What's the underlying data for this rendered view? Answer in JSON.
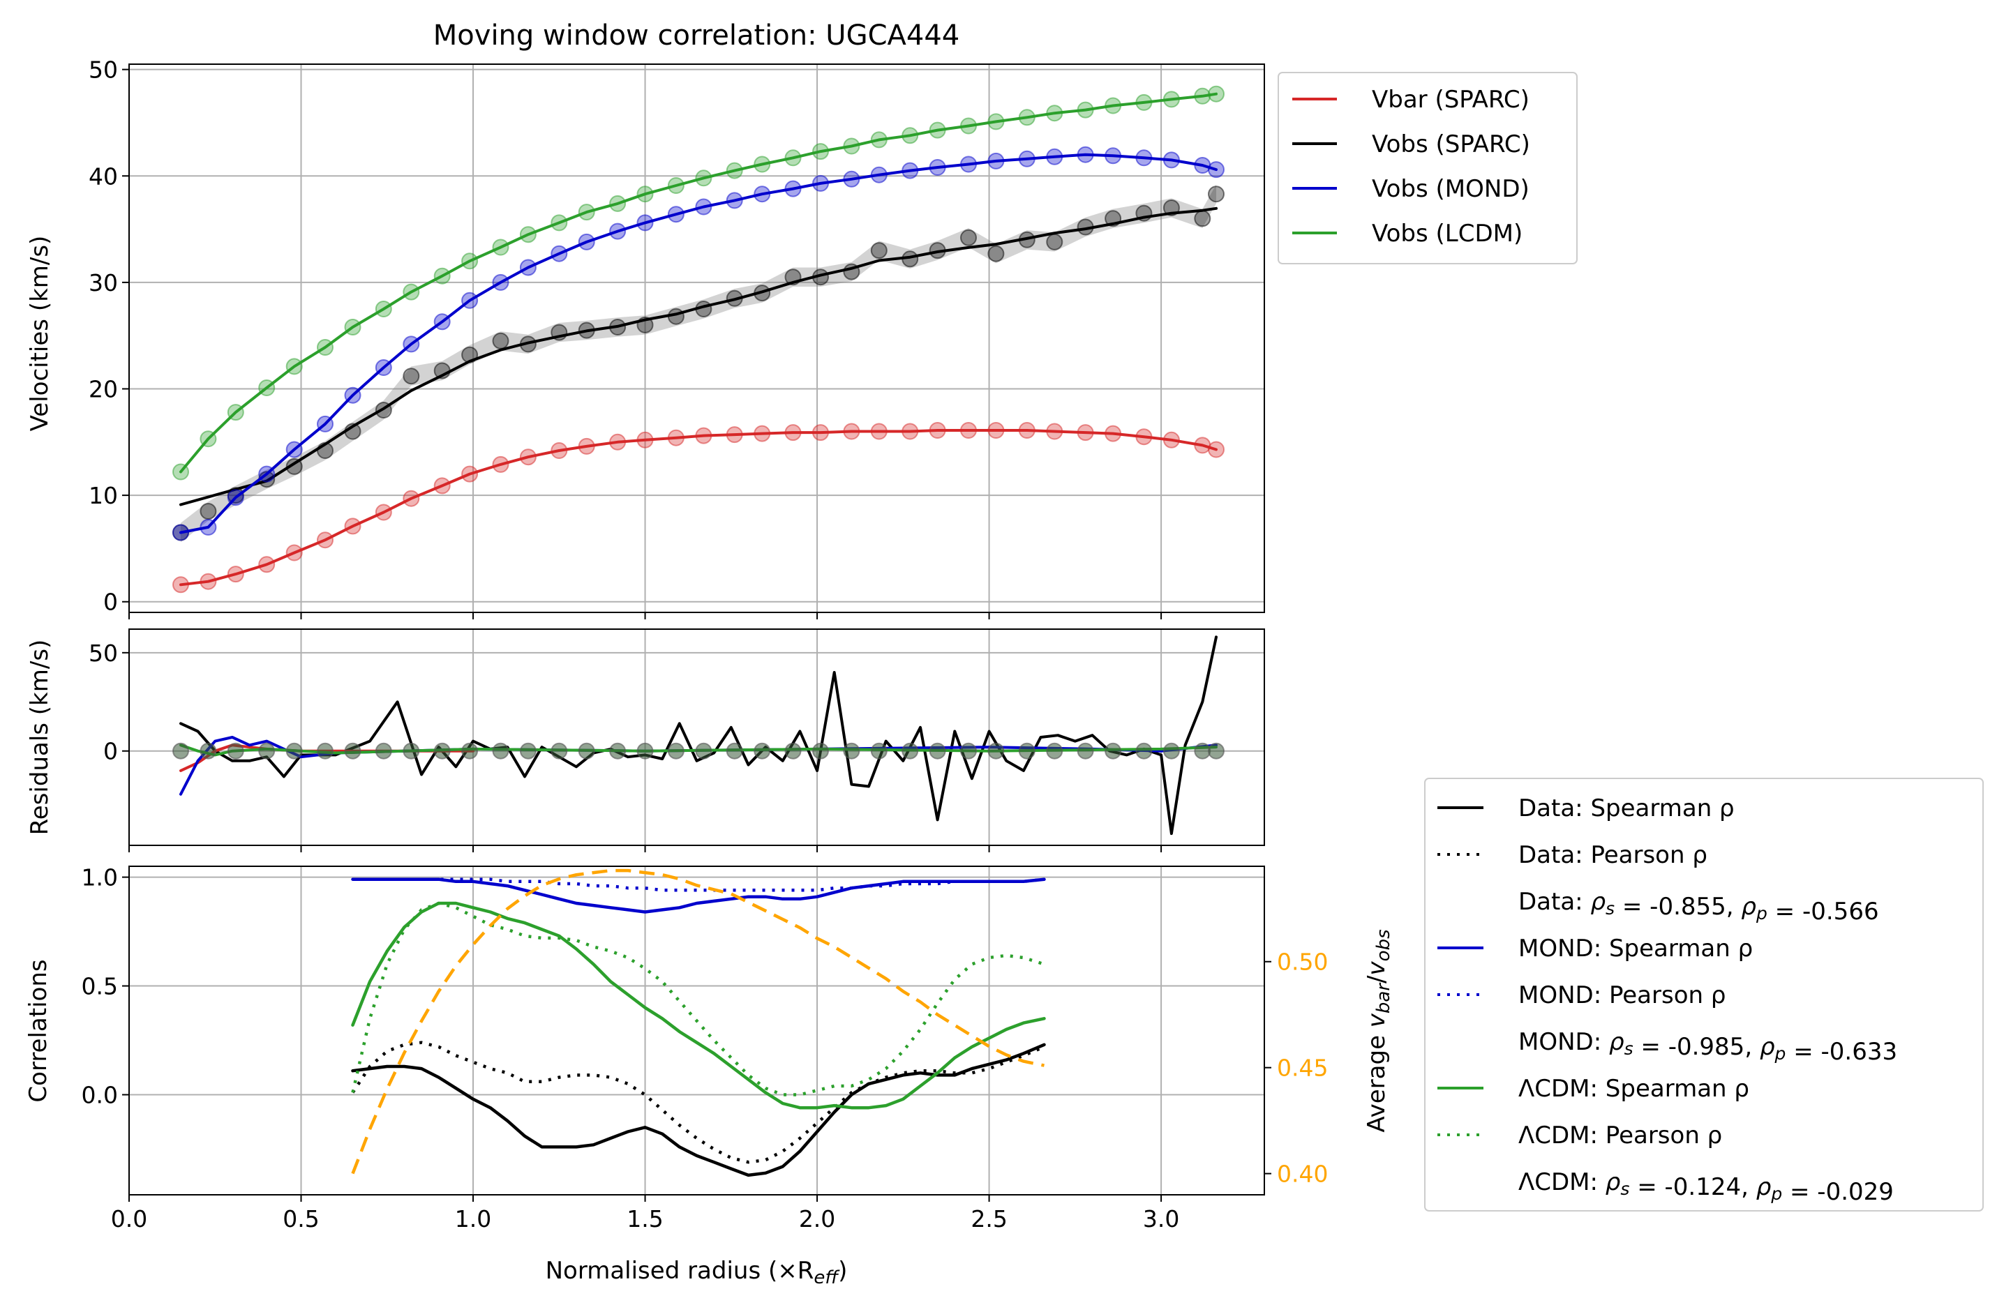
{
  "chart_data": [
    {
      "type": "line",
      "panel": "velocities",
      "title": "Moving window correlation: UGCA444",
      "ylabel": "Velocities (km/s)",
      "xlim": [
        0.0,
        3.3
      ],
      "ylim": [
        -1,
        50.5
      ],
      "yticks": [
        "0",
        "10",
        "20",
        "30",
        "40",
        "50"
      ],
      "grid": true,
      "legend_position": "outside-top-right",
      "legend": [
        {
          "label": "Vbar (SPARC)",
          "color": "#d62728"
        },
        {
          "label": "Vobs (SPARC)",
          "color": "#000000"
        },
        {
          "label": "Vobs (MOND)",
          "color": "#0000cc"
        },
        {
          "label": "Vobs (LCDM)",
          "color": "#2ca02c"
        }
      ],
      "x": [
        0.15,
        0.23,
        0.31,
        0.4,
        0.48,
        0.57,
        0.65,
        0.74,
        0.82,
        0.91,
        0.99,
        1.08,
        1.16,
        1.25,
        1.33,
        1.42,
        1.5,
        1.59,
        1.67,
        1.76,
        1.84,
        1.93,
        2.01,
        2.1,
        2.18,
        2.27,
        2.35,
        2.44,
        2.52,
        2.61,
        2.69,
        2.78,
        2.86,
        2.95,
        3.03,
        3.12,
        3.16
      ],
      "series": [
        {
          "name": "Vbar (SPARC)",
          "color": "#d62728",
          "values": [
            1.6,
            1.9,
            2.6,
            3.5,
            4.6,
            5.8,
            7.1,
            8.4,
            9.7,
            10.9,
            12.0,
            12.9,
            13.6,
            14.2,
            14.6,
            15.0,
            15.2,
            15.4,
            15.6,
            15.7,
            15.8,
            15.9,
            15.9,
            16.0,
            16.0,
            16.0,
            16.1,
            16.1,
            16.1,
            16.1,
            16.0,
            15.9,
            15.8,
            15.5,
            15.2,
            14.7,
            14.3
          ]
        },
        {
          "name": "Vobs (SPARC)",
          "color": "#000000",
          "values": [
            6.5,
            8.5,
            10.0,
            11.5,
            12.7,
            14.2,
            16.0,
            18.0,
            21.2,
            21.7,
            23.2,
            24.5,
            24.2,
            25.3,
            25.5,
            25.8,
            26.0,
            26.8,
            27.5,
            28.5,
            29.0,
            30.5,
            30.5,
            31.0,
            33.0,
            32.2,
            33.0,
            34.2,
            32.7,
            34.0,
            33.8,
            35.2,
            36.0,
            36.5,
            37.0,
            36.0,
            38.3
          ]
        },
        {
          "name": "Vobs (MOND)",
          "color": "#0000cc",
          "values": [
            6.5,
            7.0,
            9.8,
            12.0,
            14.3,
            16.7,
            19.4,
            22.0,
            24.2,
            26.3,
            28.3,
            30.0,
            31.4,
            32.7,
            33.8,
            34.8,
            35.6,
            36.4,
            37.1,
            37.7,
            38.3,
            38.8,
            39.3,
            39.7,
            40.1,
            40.5,
            40.8,
            41.1,
            41.4,
            41.6,
            41.8,
            42.0,
            41.9,
            41.7,
            41.5,
            41.0,
            40.6
          ]
        },
        {
          "name": "Vobs (LCDM)",
          "color": "#2ca02c",
          "values": [
            12.2,
            15.3,
            17.8,
            20.1,
            22.1,
            23.9,
            25.8,
            27.5,
            29.1,
            30.6,
            32.0,
            33.3,
            34.5,
            35.6,
            36.6,
            37.4,
            38.3,
            39.1,
            39.8,
            40.5,
            41.1,
            41.7,
            42.3,
            42.8,
            43.4,
            43.8,
            44.3,
            44.7,
            45.1,
            45.5,
            45.9,
            46.2,
            46.6,
            46.9,
            47.2,
            47.5,
            47.7
          ]
        }
      ]
    },
    {
      "type": "line",
      "panel": "residuals",
      "ylabel": "Residuals (km/s)",
      "xlim": [
        0.0,
        3.3
      ],
      "ylim": [
        -48,
        62
      ],
      "yticks": [
        "0",
        "50"
      ],
      "grid": true,
      "series": [
        {
          "name": "Data",
          "color": "#000000",
          "x": [
            0.15,
            0.2,
            0.25,
            0.3,
            0.35,
            0.4,
            0.45,
            0.5,
            0.6,
            0.7,
            0.78,
            0.85,
            0.9,
            0.95,
            1.0,
            1.05,
            1.1,
            1.15,
            1.2,
            1.25,
            1.3,
            1.35,
            1.4,
            1.45,
            1.5,
            1.55,
            1.6,
            1.65,
            1.7,
            1.75,
            1.8,
            1.85,
            1.9,
            1.95,
            2.0,
            2.05,
            2.1,
            2.15,
            2.2,
            2.25,
            2.3,
            2.35,
            2.4,
            2.45,
            2.5,
            2.55,
            2.6,
            2.65,
            2.7,
            2.75,
            2.8,
            2.85,
            2.9,
            2.95,
            3.0,
            3.03,
            3.07,
            3.12,
            3.16
          ],
          "values": [
            14,
            10,
            0,
            -5,
            -5,
            -3,
            -13,
            -2,
            -2,
            5,
            25,
            -12,
            2,
            -8,
            5,
            1,
            2,
            -13,
            2,
            -3,
            -8,
            -1,
            1,
            -3,
            -2,
            -4,
            14,
            -5,
            -1,
            12,
            -7,
            2,
            -5,
            10,
            -10,
            40,
            -17,
            -18,
            5,
            -5,
            12,
            -35,
            10,
            -14,
            10,
            -5,
            -10,
            7,
            8,
            5,
            8,
            0,
            -2,
            1,
            -2,
            -42,
            3,
            25,
            58
          ]
        },
        {
          "name": "MOND",
          "color": "#0000cc",
          "x": [
            0.15,
            0.2,
            0.25,
            0.3,
            0.35,
            0.4,
            0.5,
            0.6,
            0.8,
            1.0,
            1.5,
            2.0,
            2.5,
            2.8,
            3.0,
            3.16
          ],
          "values": [
            -22,
            -5,
            5,
            7,
            3,
            5,
            -3,
            -1,
            0,
            1,
            0,
            1,
            2,
            1,
            0,
            3
          ]
        },
        {
          "name": "LCDM",
          "color": "#2ca02c",
          "x": [
            0.15,
            0.2,
            0.25,
            0.3,
            0.4,
            0.5,
            0.6,
            0.8,
            1.0,
            1.5,
            2.0,
            2.5,
            3.0,
            3.16
          ],
          "values": [
            3,
            0,
            -2,
            0,
            1,
            0,
            -1,
            0,
            1,
            0,
            1,
            0,
            1,
            2
          ]
        },
        {
          "name": "Vbar",
          "color": "#d62728",
          "x": [
            0.15,
            0.2,
            0.25,
            0.3,
            0.35,
            0.4,
            0.5,
            0.6,
            0.8,
            1.0
          ],
          "values": [
            -10,
            -6,
            0,
            3,
            2,
            1,
            0,
            0,
            0,
            0
          ]
        }
      ]
    },
    {
      "type": "line",
      "panel": "correlations",
      "xlabel": "Normalised radius (×R_eff)",
      "ylabel": "Correlations",
      "y2label": "Average v_bar/v_obs",
      "xlim": [
        0.0,
        3.3
      ],
      "xticks": [
        "0.0",
        "0.5",
        "1.0",
        "1.5",
        "2.0",
        "2.5",
        "3.0"
      ],
      "ylim": [
        -0.46,
        1.05
      ],
      "yticks": [
        "0.0",
        "0.5",
        "1.0"
      ],
      "y2lim": [
        0.39,
        0.545
      ],
      "y2ticks": [
        "0.40",
        "0.45",
        "0.50"
      ],
      "grid": true,
      "legend_position": "outside-lower-right",
      "legend": [
        {
          "label": "Data: Spearman ρ",
          "color": "#000000",
          "style": "solid"
        },
        {
          "label": "Data: Pearson ρ",
          "color": "#000000",
          "style": "dotted"
        },
        {
          "label": "Data: ρs = -0.855, ρp = -0.566",
          "color": "",
          "style": "none"
        },
        {
          "label": "MOND: Spearman ρ",
          "color": "#0000cc",
          "style": "solid"
        },
        {
          "label": "MOND: Pearson ρ",
          "color": "#0000cc",
          "style": "dotted"
        },
        {
          "label": "MOND: ρs = -0.985, ρp = -0.633",
          "color": "",
          "style": "none"
        },
        {
          "label": "ΛCDM: Spearman ρ",
          "color": "#2ca02c",
          "style": "solid"
        },
        {
          "label": "ΛCDM: Pearson ρ",
          "color": "#2ca02c",
          "style": "dotted"
        },
        {
          "label": "ΛCDM: ρs = -0.124, ρp = -0.029",
          "color": "",
          "style": "none"
        }
      ],
      "x": [
        0.65,
        0.7,
        0.75,
        0.8,
        0.85,
        0.9,
        0.95,
        1.0,
        1.05,
        1.1,
        1.15,
        1.2,
        1.25,
        1.3,
        1.35,
        1.4,
        1.45,
        1.5,
        1.55,
        1.6,
        1.65,
        1.7,
        1.75,
        1.8,
        1.85,
        1.9,
        1.95,
        2.0,
        2.05,
        2.1,
        2.15,
        2.2,
        2.25,
        2.3,
        2.35,
        2.4,
        2.45,
        2.5,
        2.55,
        2.6,
        2.66
      ],
      "series": [
        {
          "name": "Data: Spearman ρ",
          "color": "#000000",
          "style": "solid",
          "values": [
            0.11,
            0.12,
            0.13,
            0.13,
            0.12,
            0.08,
            0.03,
            -0.02,
            -0.06,
            -0.12,
            -0.19,
            -0.24,
            -0.24,
            -0.24,
            -0.23,
            -0.2,
            -0.17,
            -0.15,
            -0.18,
            -0.24,
            -0.28,
            -0.31,
            -0.34,
            -0.37,
            -0.36,
            -0.33,
            -0.26,
            -0.17,
            -0.08,
            0.0,
            0.05,
            0.07,
            0.09,
            0.1,
            0.09,
            0.09,
            0.12,
            0.14,
            0.16,
            0.19,
            0.23
          ]
        },
        {
          "name": "Data: Pearson ρ",
          "color": "#000000",
          "style": "dotted",
          "values": [
            0.01,
            0.13,
            0.2,
            0.23,
            0.24,
            0.22,
            0.18,
            0.15,
            0.12,
            0.1,
            0.06,
            0.06,
            0.08,
            0.09,
            0.09,
            0.08,
            0.05,
            0.0,
            -0.07,
            -0.14,
            -0.2,
            -0.25,
            -0.29,
            -0.31,
            -0.3,
            -0.26,
            -0.2,
            -0.13,
            -0.06,
            0.01,
            0.05,
            0.08,
            0.1,
            0.11,
            0.11,
            0.1,
            0.1,
            0.12,
            0.15,
            0.18,
            0.22
          ]
        },
        {
          "name": "MOND: Spearman ρ",
          "color": "#0000cc",
          "style": "solid",
          "values": [
            0.99,
            0.99,
            0.99,
            0.99,
            0.99,
            0.99,
            0.98,
            0.98,
            0.97,
            0.96,
            0.94,
            0.92,
            0.9,
            0.88,
            0.87,
            0.86,
            0.85,
            0.84,
            0.85,
            0.86,
            0.88,
            0.89,
            0.9,
            0.91,
            0.91,
            0.9,
            0.9,
            0.91,
            0.93,
            0.95,
            0.96,
            0.97,
            0.98,
            0.98,
            0.98,
            0.98,
            0.98,
            0.98,
            0.98,
            0.98,
            0.99
          ]
        },
        {
          "name": "MOND: Pearson ρ",
          "color": "#0000cc",
          "style": "dotted",
          "values": [
            0.99,
            0.99,
            0.99,
            0.99,
            0.99,
            0.99,
            0.99,
            0.99,
            0.99,
            0.98,
            0.98,
            0.98,
            0.97,
            0.97,
            0.96,
            0.96,
            0.95,
            0.95,
            0.94,
            0.94,
            0.94,
            0.94,
            0.94,
            0.94,
            0.94,
            0.94,
            0.94,
            0.94,
            0.95,
            0.95,
            0.96,
            0.96,
            0.97,
            0.97,
            0.97,
            0.98,
            0.98,
            0.98,
            0.98,
            0.98,
            0.99
          ]
        },
        {
          "name": "ΛCDM: Spearman ρ",
          "color": "#2ca02c",
          "style": "solid",
          "values": [
            0.32,
            0.52,
            0.66,
            0.77,
            0.84,
            0.88,
            0.88,
            0.86,
            0.84,
            0.81,
            0.79,
            0.76,
            0.73,
            0.67,
            0.6,
            0.52,
            0.46,
            0.4,
            0.35,
            0.29,
            0.24,
            0.19,
            0.13,
            0.07,
            0.01,
            -0.04,
            -0.06,
            -0.06,
            -0.05,
            -0.06,
            -0.06,
            -0.05,
            -0.02,
            0.04,
            0.1,
            0.17,
            0.22,
            0.26,
            0.3,
            0.33,
            0.35
          ]
        },
        {
          "name": "ΛCDM: Pearson ρ",
          "color": "#2ca02c",
          "style": "dotted",
          "values": [
            0.01,
            0.35,
            0.6,
            0.76,
            0.85,
            0.88,
            0.86,
            0.82,
            0.78,
            0.76,
            0.73,
            0.72,
            0.72,
            0.71,
            0.68,
            0.66,
            0.63,
            0.58,
            0.52,
            0.43,
            0.34,
            0.25,
            0.17,
            0.09,
            0.03,
            0.0,
            0.0,
            0.02,
            0.04,
            0.04,
            0.07,
            0.12,
            0.2,
            0.3,
            0.42,
            0.53,
            0.6,
            0.63,
            0.64,
            0.63,
            0.6
          ]
        },
        {
          "name": "Average v_bar/v_obs",
          "color": "#ffa500",
          "style": "dashed",
          "axis": "right",
          "values": [
            0.4,
            0.421,
            0.44,
            0.457,
            0.472,
            0.486,
            0.498,
            0.508,
            0.517,
            0.525,
            0.531,
            0.536,
            0.539,
            0.541,
            0.542,
            0.543,
            0.543,
            0.542,
            0.541,
            0.539,
            0.536,
            0.534,
            0.532,
            0.528,
            0.524,
            0.52,
            0.516,
            0.511,
            0.507,
            0.502,
            0.497,
            0.492,
            0.486,
            0.481,
            0.475,
            0.47,
            0.465,
            0.46,
            0.456,
            0.453,
            0.451
          ]
        }
      ]
    }
  ]
}
